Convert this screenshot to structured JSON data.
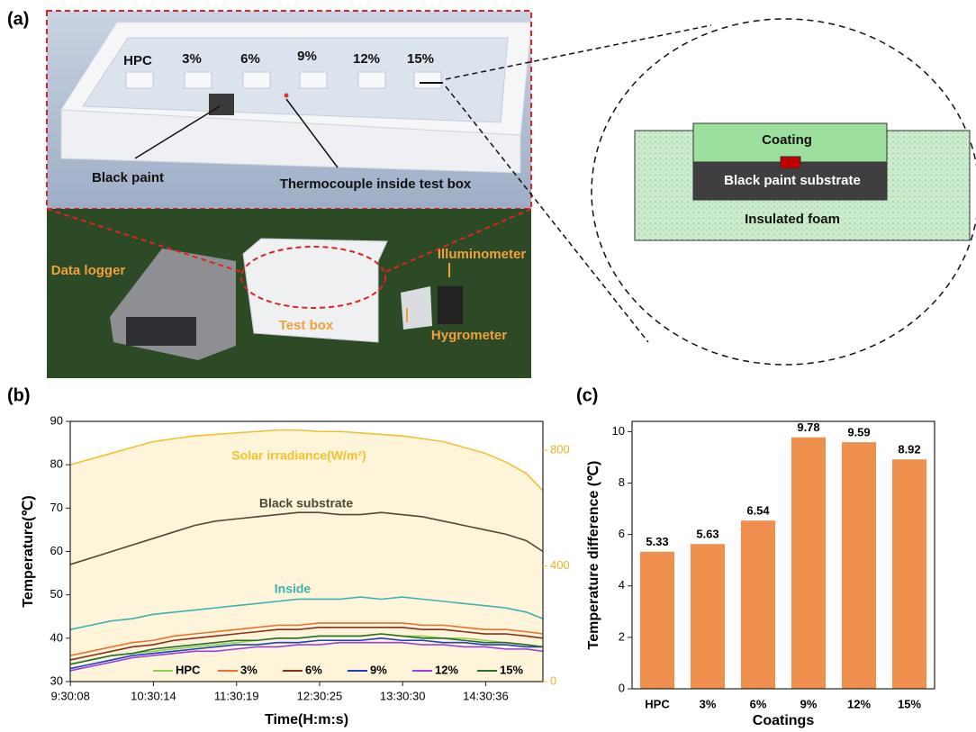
{
  "panel_labels": [
    "(a)",
    "(b)",
    "(c)"
  ],
  "panel_a": {
    "sample_labels": [
      "HPC",
      "3%",
      "6%",
      "9%",
      "12%",
      "15%"
    ],
    "black_paint": "Black paint",
    "thermocouple": "Thermocouple inside test box",
    "data_logger": "Data logger",
    "test_box": "Test box",
    "illuminometer": "Illuminometer",
    "hygrometer": "Hygrometer",
    "coating": "Coating",
    "substrate": "Black paint substrate",
    "foam": "Insulated foam"
  },
  "chart_data": [
    {
      "type": "line",
      "xlabel": "Time(H:m:s)",
      "ylabel": "Temperature(℃)",
      "x": [
        9.5,
        9.75,
        10,
        10.25,
        10.5,
        10.75,
        11,
        11.25,
        11.5,
        11.75,
        12,
        12.25,
        12.5,
        12.75,
        13,
        13.25,
        13.5,
        13.75,
        14,
        14.25,
        14.5,
        14.75,
        15,
        15.2
      ],
      "xlim": [
        9.5,
        15.2
      ],
      "xticks": [
        {
          "value": 9.5022,
          "label": "9:30:08"
        },
        {
          "value": 10.5039,
          "label": "10:30:14"
        },
        {
          "value": 11.5053,
          "label": "11:30:19"
        },
        {
          "value": 12.5069,
          "label": "12:30:25"
        },
        {
          "value": 13.5083,
          "label": "13:30:30"
        },
        {
          "value": 14.51,
          "label": "14:30:36"
        }
      ],
      "ylim": [
        30,
        90
      ],
      "yticks": [
        30,
        40,
        50,
        60,
        70,
        80,
        90
      ],
      "y2lim": [
        0,
        900
      ],
      "y2ticks": [
        0,
        400,
        800
      ],
      "series": [
        {
          "name": "Solar irradiance(W/m²)",
          "color": "#f2c12e",
          "axis": "y2",
          "area": true,
          "in_legend": false,
          "values": [
            750,
            770,
            790,
            810,
            830,
            840,
            850,
            855,
            860,
            865,
            870,
            870,
            865,
            865,
            860,
            855,
            850,
            840,
            830,
            810,
            790,
            760,
            720,
            660
          ]
        },
        {
          "name": "Black substrate",
          "color": "#4a4a36",
          "in_legend": false,
          "values": [
            57,
            58.5,
            60,
            61.5,
            63,
            64.5,
            66,
            67,
            67.5,
            68,
            68.5,
            69,
            69,
            68.5,
            68.5,
            69,
            68.5,
            68,
            67,
            66,
            65,
            64,
            62.5,
            60
          ]
        },
        {
          "name": "Inside",
          "color": "#3bb3b0",
          "in_legend": false,
          "values": [
            42,
            43,
            44,
            44.5,
            45.5,
            46,
            46.5,
            47,
            47.5,
            48,
            48.5,
            49,
            49,
            49,
            49.5,
            49,
            49.5,
            49,
            48.5,
            48,
            47.5,
            47,
            46,
            44.5
          ]
        },
        {
          "name": "HPC",
          "color": "#8fd14f",
          "in_legend": true,
          "values": [
            34,
            35,
            36,
            36.5,
            37,
            37.5,
            38,
            38.5,
            39,
            39.5,
            40,
            40,
            40.5,
            40.5,
            40.5,
            41,
            40.5,
            40.5,
            40,
            40,
            39.5,
            39,
            38.5,
            38
          ]
        },
        {
          "name": "3%",
          "color": "#e8732c",
          "in_legend": true,
          "values": [
            36,
            37,
            38,
            39,
            39.5,
            40.5,
            41,
            41.5,
            42,
            42.5,
            43,
            43,
            43.5,
            43.5,
            43.5,
            43.5,
            43.5,
            43,
            43,
            42.5,
            42,
            42,
            41.5,
            41
          ]
        },
        {
          "name": "6%",
          "color": "#8b2d1c",
          "in_legend": true,
          "values": [
            35,
            36,
            37,
            38,
            38.5,
            39.5,
            40,
            40.5,
            41,
            41.5,
            42,
            42,
            42.5,
            42.5,
            42.5,
            42.5,
            42.5,
            42,
            42,
            41.5,
            41,
            41,
            40.5,
            40
          ]
        },
        {
          "name": "9%",
          "color": "#1f3fc4",
          "in_legend": true,
          "values": [
            33,
            34,
            35,
            36,
            36.5,
            37,
            37.5,
            38,
            38.5,
            38.5,
            39,
            39,
            39.5,
            39.5,
            39.5,
            40,
            39.5,
            39.5,
            39,
            39,
            38.5,
            38.5,
            38,
            38
          ]
        },
        {
          "name": "12%",
          "color": "#9b3fe0",
          "in_legend": true,
          "values": [
            32.5,
            33.5,
            34.5,
            35.5,
            36,
            36.5,
            37,
            37,
            37.5,
            38,
            38,
            38.5,
            38.5,
            39,
            39,
            39,
            39,
            38.5,
            38.5,
            38,
            38,
            37.5,
            37.5,
            37
          ]
        },
        {
          "name": "15%",
          "color": "#2e6b2e",
          "in_legend": true,
          "values": [
            34,
            35,
            36,
            36.5,
            37.5,
            38,
            38.5,
            39,
            39.5,
            39.5,
            40,
            40,
            40.5,
            40.5,
            40.5,
            41,
            40.5,
            40,
            40,
            39.5,
            39,
            39,
            38.5,
            38
          ]
        }
      ]
    },
    {
      "type": "bar",
      "xlabel": "Coatings",
      "ylabel": "Temperature difference (℃)",
      "categories": [
        "HPC",
        "3%",
        "6%",
        "9%",
        "12%",
        "15%"
      ],
      "values": [
        5.33,
        5.63,
        6.54,
        9.78,
        9.59,
        8.92
      ],
      "color": "#ef8f4e",
      "ylim": [
        0,
        10.4
      ],
      "yticks": [
        0,
        2,
        4,
        6,
        8,
        10
      ]
    }
  ]
}
